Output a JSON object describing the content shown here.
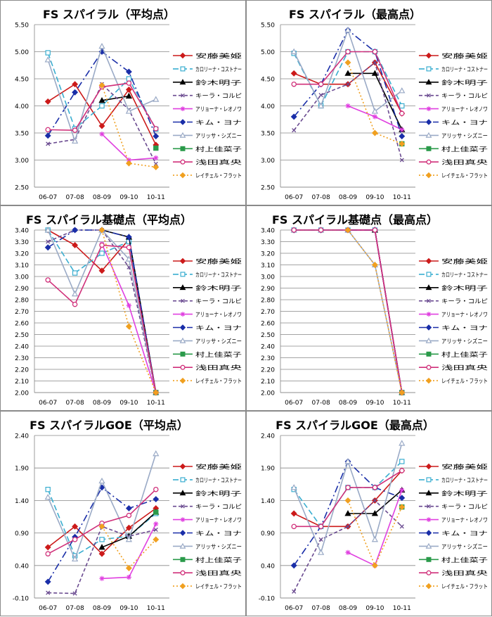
{
  "legend_entries": [
    "安藤美姫",
    "カロリーナ・コストナー",
    "鈴木明子",
    "キーラ・コルピ",
    "アリョーナ・レオノワ",
    "キム・ヨナ",
    "アリッサ・シズニー",
    "村上佳菜子",
    "浅田真央",
    "レイチェル・フラット"
  ],
  "series_styles": [
    {
      "color": "#cc1a1a",
      "marker": "diamond",
      "dash": "",
      "fill": true
    },
    {
      "color": "#3aaed0",
      "marker": "square",
      "dash": "8,4",
      "fill": false
    },
    {
      "color": "#000000",
      "marker": "triangle",
      "dash": "",
      "fill": true
    },
    {
      "color": "#6a4a90",
      "marker": "x",
      "dash": "5,3",
      "fill": false
    },
    {
      "color": "#e040e0",
      "marker": "star",
      "dash": "",
      "fill": false
    },
    {
      "color": "#1a2ea8",
      "marker": "diamond",
      "dash": "10,4,2,4",
      "fill": true
    },
    {
      "color": "#9aaac6",
      "marker": "triangle",
      "dash": "",
      "fill": false
    },
    {
      "color": "#2a9a4a",
      "marker": "square",
      "dash": "",
      "fill": true
    },
    {
      "color": "#d0307a",
      "marker": "circle",
      "dash": "",
      "fill": false
    },
    {
      "color": "#f0a020",
      "marker": "diamond",
      "dash": "2,3",
      "fill": true
    }
  ],
  "chart_data": [
    {
      "type": "line",
      "title": "FS スパイラル（平均点）",
      "categories": [
        "06-07",
        "07-08",
        "08-09",
        "09-10",
        "10-11"
      ],
      "ylim": [
        2.5,
        5.5
      ],
      "yticks": [
        "2.50",
        "3.00",
        "3.50",
        "4.00",
        "4.50",
        "5.00",
        "5.50"
      ],
      "grid": true,
      "legend": "right",
      "series": [
        {
          "name": "安藤美姫",
          "values": [
            4.08,
            4.4,
            3.63,
            4.3,
            3.28
          ]
        },
        {
          "name": "カロリーナ・コストナー",
          "values": [
            4.98,
            3.58,
            4.0,
            4.5,
            3.57
          ]
        },
        {
          "name": "鈴木明子",
          "values": [
            null,
            null,
            4.1,
            4.18,
            null
          ]
        },
        {
          "name": "キーラ・コルピ",
          "values": [
            3.3,
            3.38,
            4.4,
            3.93,
            2.93
          ]
        },
        {
          "name": "アリョーナ・レオノワ",
          "values": [
            null,
            null,
            3.48,
            3.0,
            3.04
          ]
        },
        {
          "name": "キム・ヨナ",
          "values": [
            3.45,
            4.25,
            5.0,
            4.63,
            3.44
          ]
        },
        {
          "name": "アリッサ・シズニー",
          "values": [
            4.85,
            3.35,
            5.1,
            3.9,
            4.12
          ]
        },
        {
          "name": "村上佳菜子",
          "values": [
            null,
            null,
            null,
            null,
            3.22
          ]
        },
        {
          "name": "浅田真央",
          "values": [
            3.56,
            3.55,
            4.35,
            4.42,
            3.58
          ]
        },
        {
          "name": "レイチェル・フラット",
          "values": [
            null,
            null,
            4.38,
            2.94,
            2.87
          ]
        }
      ]
    },
    {
      "type": "line",
      "title": "FS スパイラル（最高点）",
      "categories": [
        "06-07",
        "07-08",
        "08-09",
        "09-10",
        "10-11"
      ],
      "ylim": [
        2.5,
        5.5
      ],
      "yticks": [
        "2.50",
        "3.00",
        "3.50",
        "4.00",
        "4.50",
        "5.00",
        "5.50"
      ],
      "grid": true,
      "legend": "right",
      "series": [
        {
          "name": "安藤美姫",
          "values": [
            4.6,
            4.4,
            4.4,
            4.8,
            3.86
          ]
        },
        {
          "name": "カロリーナ・コストナー",
          "values": [
            4.97,
            4.0,
            5.0,
            5.0,
            4.0
          ]
        },
        {
          "name": "鈴木明子",
          "values": [
            null,
            null,
            4.6,
            4.6,
            3.56
          ]
        },
        {
          "name": "キーラ・コルピ",
          "values": [
            3.55,
            4.2,
            4.4,
            4.8,
            3.0
          ]
        },
        {
          "name": "アリョーナ・レオノワ",
          "values": [
            null,
            null,
            4.0,
            3.8,
            3.56
          ]
        },
        {
          "name": "キム・ヨナ",
          "values": [
            3.8,
            4.4,
            5.4,
            5.0,
            3.44
          ]
        },
        {
          "name": "アリッサ・シズニー",
          "values": [
            5.0,
            4.0,
            5.4,
            3.9,
            4.28
          ]
        },
        {
          "name": "村上佳菜子",
          "values": [
            null,
            null,
            null,
            null,
            3.3
          ]
        },
        {
          "name": "浅田真央",
          "values": [
            4.4,
            4.4,
            5.0,
            5.0,
            3.86
          ]
        },
        {
          "name": "レイチェル・フラット",
          "values": [
            null,
            null,
            4.8,
            3.5,
            3.3
          ]
        }
      ]
    },
    {
      "type": "line",
      "title": "FS スパイラル基礎点（平均点）",
      "categories": [
        "06-07",
        "07-08",
        "08-09",
        "09-10",
        "10-11"
      ],
      "ylim": [
        2.0,
        3.4
      ],
      "yticks": [
        "2.00",
        "2.10",
        "2.20",
        "2.30",
        "2.40",
        "2.50",
        "2.60",
        "2.70",
        "2.80",
        "2.90",
        "3.00",
        "3.10",
        "3.20",
        "3.30",
        "3.40"
      ],
      "grid": true,
      "legend": "right",
      "series": [
        {
          "name": "安藤美姫",
          "values": [
            3.4,
            3.27,
            3.05,
            3.32,
            2.0
          ]
        },
        {
          "name": "カロリーナ・コストナー",
          "values": [
            3.4,
            3.03,
            3.2,
            3.3,
            2.0
          ]
        },
        {
          "name": "鈴木明子",
          "values": [
            null,
            null,
            3.4,
            3.34,
            2.0
          ]
        },
        {
          "name": "キーラ・コルピ",
          "values": [
            3.3,
            3.4,
            3.4,
            3.08,
            2.0
          ]
        },
        {
          "name": "アリョーナ・レオノワ",
          "values": [
            null,
            null,
            3.28,
            2.75,
            2.0
          ]
        },
        {
          "name": "キム・ヨナ",
          "values": [
            3.25,
            3.4,
            3.4,
            3.34,
            2.0
          ]
        },
        {
          "name": "アリッサ・シズニー",
          "values": [
            3.4,
            2.85,
            3.4,
            3.15,
            2.0
          ]
        },
        {
          "name": "村上佳菜子",
          "values": [
            null,
            null,
            null,
            null,
            2.0
          ]
        },
        {
          "name": "浅田真央",
          "values": [
            2.97,
            2.76,
            3.27,
            3.25,
            2.0
          ]
        },
        {
          "name": "レイチェル・フラット",
          "values": [
            null,
            null,
            3.4,
            2.57,
            2.0
          ]
        }
      ]
    },
    {
      "type": "line",
      "title": "FS スパイラル基礎点（最高点）",
      "categories": [
        "06-07",
        "07-08",
        "08-09",
        "09-10",
        "10-11"
      ],
      "ylim": [
        2.0,
        3.4
      ],
      "yticks": [
        "2.00",
        "2.10",
        "2.20",
        "2.30",
        "2.40",
        "2.50",
        "2.60",
        "2.70",
        "2.80",
        "2.90",
        "3.00",
        "3.10",
        "3.20",
        "3.30",
        "3.40"
      ],
      "grid": true,
      "legend": "right",
      "series": [
        {
          "name": "安藤美姫",
          "values": [
            3.4,
            3.4,
            3.4,
            3.4,
            2.0
          ]
        },
        {
          "name": "カロリーナ・コストナー",
          "values": [
            3.4,
            3.4,
            3.4,
            3.4,
            2.0
          ]
        },
        {
          "name": "鈴木明子",
          "values": [
            null,
            null,
            3.4,
            3.4,
            2.0
          ]
        },
        {
          "name": "キーラ・コルピ",
          "values": [
            3.4,
            3.4,
            3.4,
            3.4,
            2.0
          ]
        },
        {
          "name": "アリョーナ・レオノワ",
          "values": [
            null,
            null,
            3.4,
            3.4,
            2.0
          ]
        },
        {
          "name": "キム・ヨナ",
          "values": [
            3.4,
            3.4,
            3.4,
            3.4,
            2.0
          ]
        },
        {
          "name": "アリッサ・シズニー",
          "values": [
            3.4,
            3.4,
            3.4,
            3.1,
            2.0
          ]
        },
        {
          "name": "村上佳菜子",
          "values": [
            null,
            null,
            null,
            null,
            2.0
          ]
        },
        {
          "name": "浅田真央",
          "values": [
            3.4,
            3.4,
            3.4,
            3.4,
            2.0
          ]
        },
        {
          "name": "レイチェル・フラット",
          "values": [
            null,
            null,
            3.4,
            3.1,
            2.0
          ]
        }
      ]
    },
    {
      "type": "line",
      "title": "FS スパイラルGOE（平均点）",
      "categories": [
        "06-07",
        "07-08",
        "08-09",
        "09-10",
        "10-11"
      ],
      "ylim": [
        -0.1,
        2.4
      ],
      "yticks": [
        "-0.10",
        "0.40",
        "0.90",
        "1.40",
        "1.90",
        "2.40"
      ],
      "grid": true,
      "legend": "right",
      "series": [
        {
          "name": "安藤美姫",
          "values": [
            0.68,
            1.0,
            0.58,
            0.98,
            1.28
          ]
        },
        {
          "name": "カロリーナ・コストナー",
          "values": [
            1.57,
            0.55,
            0.8,
            0.85,
            1.2
          ]
        },
        {
          "name": "鈴木明子",
          "values": [
            null,
            null,
            0.68,
            0.85,
            1.22
          ]
        },
        {
          "name": "キーラ・コルピ",
          "values": [
            -0.02,
            -0.03,
            1.0,
            0.85,
            0.95
          ]
        },
        {
          "name": "アリョーナ・レオノワ",
          "values": [
            null,
            null,
            0.2,
            0.22,
            1.04
          ]
        },
        {
          "name": "キム・ヨナ",
          "values": [
            0.15,
            0.84,
            1.6,
            1.28,
            1.42
          ]
        },
        {
          "name": "アリッサ・シズニー",
          "values": [
            1.45,
            0.5,
            1.7,
            0.8,
            2.12
          ]
        },
        {
          "name": "村上佳菜子",
          "values": [
            null,
            null,
            null,
            null,
            1.22
          ]
        },
        {
          "name": "浅田真央",
          "values": [
            0.58,
            0.8,
            1.05,
            1.17,
            1.57
          ]
        },
        {
          "name": "レイチェル・フラット",
          "values": [
            null,
            null,
            1.0,
            0.36,
            0.8
          ]
        }
      ]
    },
    {
      "type": "line",
      "title": "FS スパイラルGOE（最高点）",
      "categories": [
        "06-07",
        "07-08",
        "08-09",
        "09-10",
        "10-11"
      ],
      "ylim": [
        -0.1,
        2.4
      ],
      "yticks": [
        "-0.10",
        "0.40",
        "0.90",
        "1.40",
        "1.90",
        "2.40"
      ],
      "grid": true,
      "legend": "right",
      "series": [
        {
          "name": "安藤美姫",
          "values": [
            1.2,
            1.0,
            1.0,
            1.4,
            1.86
          ]
        },
        {
          "name": "カロリーナ・コストナー",
          "values": [
            1.57,
            1.0,
            1.6,
            1.6,
            2.0
          ]
        },
        {
          "name": "鈴木明子",
          "values": [
            null,
            null,
            1.2,
            1.2,
            1.56
          ]
        },
        {
          "name": "キーラ・コルピ",
          "values": [
            0.0,
            0.8,
            1.0,
            1.4,
            1.0
          ]
        },
        {
          "name": "アリョーナ・レオノワ",
          "values": [
            null,
            null,
            0.6,
            0.4,
            1.56
          ]
        },
        {
          "name": "キム・ヨナ",
          "values": [
            0.4,
            1.0,
            2.0,
            1.6,
            1.44
          ]
        },
        {
          "name": "アリッサ・シズニー",
          "values": [
            1.6,
            0.6,
            2.0,
            0.8,
            2.28
          ]
        },
        {
          "name": "村上佳菜子",
          "values": [
            null,
            null,
            null,
            null,
            1.3
          ]
        },
        {
          "name": "浅田真央",
          "values": [
            1.0,
            1.0,
            1.6,
            1.6,
            1.86
          ]
        },
        {
          "name": "レイチェル・フラット",
          "values": [
            null,
            null,
            1.4,
            0.4,
            1.3
          ]
        }
      ]
    }
  ]
}
